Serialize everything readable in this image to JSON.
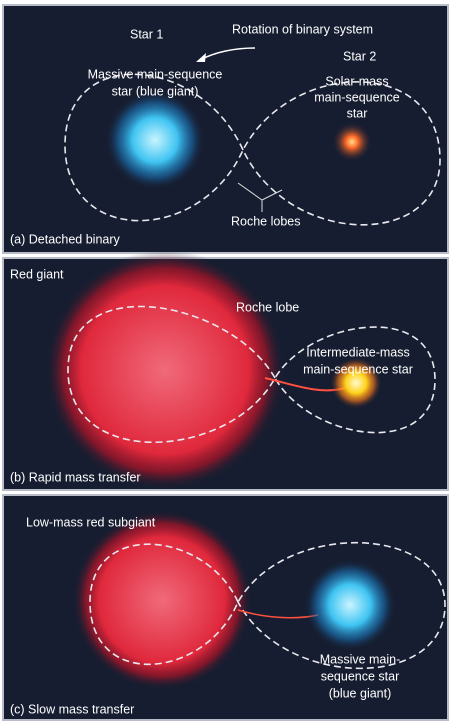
{
  "panels": [
    {
      "label": "(a) Detached binary",
      "rotation": "Rotation of binary system",
      "star1": "Star 1",
      "star2": "Star 2",
      "left_star": [
        "Massive main-sequence",
        "star (blue giant)"
      ],
      "right_star": [
        "Solar-mass",
        "main-sequence",
        "star"
      ],
      "lobes": "Roche lobes"
    },
    {
      "label": "(b) Rapid mass transfer",
      "left_star": [
        "Red giant"
      ],
      "lobes": "Roche lobe",
      "right_star": [
        "Intermediate-mass",
        "main-sequence star"
      ]
    },
    {
      "label": "(c) Slow mass transfer",
      "left_star": [
        "Low-mass red subgiant"
      ],
      "right_star": [
        "Massive main-",
        "sequence star",
        "(blue giant)"
      ]
    }
  ]
}
